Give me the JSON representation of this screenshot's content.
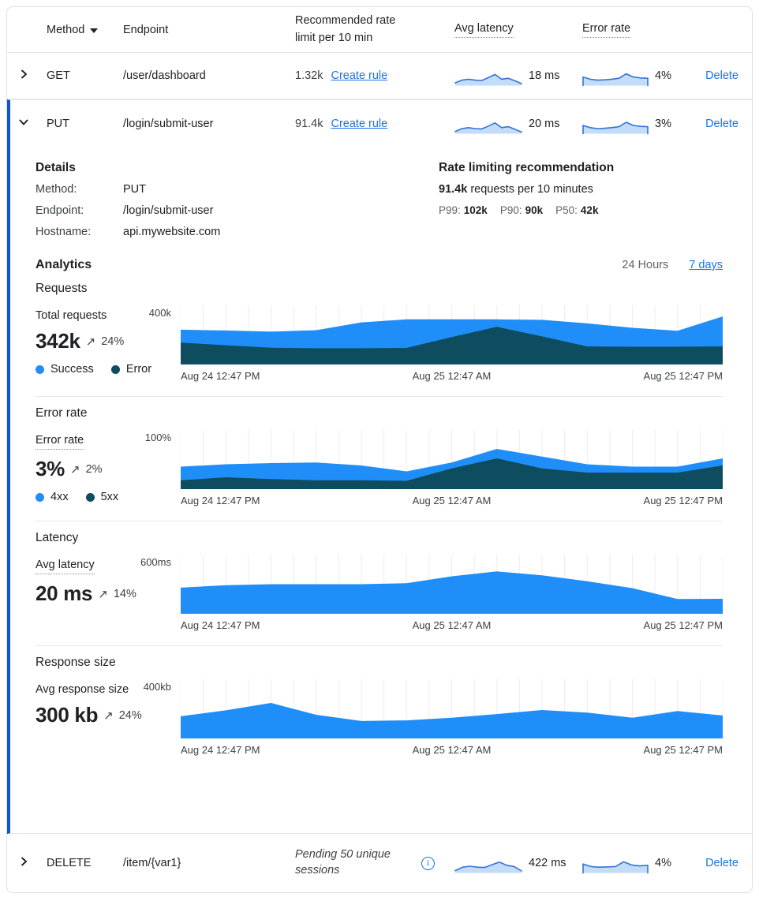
{
  "icons": {
    "trend_up": "↗",
    "info": "i"
  },
  "colors": {
    "success_blue": "#1f8ef9",
    "error_dark": "#0d4d5f",
    "spark_stroke": "#3572d6",
    "spark_fill": "#c3dcf9",
    "link_blue": "#1a73e8",
    "accent_border": "#0b57d0"
  },
  "table": {
    "headers": {
      "method": "Method",
      "endpoint": "Endpoint",
      "rate_limit": "Recommended rate limit per 10 min",
      "avg_latency": "Avg latency",
      "error_rate": "Error rate"
    },
    "rows": [
      {
        "method": "GET",
        "endpoint": "/user/dashboard",
        "rate_limit": "1.32k",
        "rate_action": "Create rule",
        "latency_value": "18 ms",
        "error_value": "4%",
        "action": "Delete"
      },
      {
        "method": "PUT",
        "endpoint": "/login/submit-user",
        "rate_limit": "91.4k",
        "rate_action": "Create rule",
        "latency_value": "20 ms",
        "error_value": "3%",
        "action": "Delete"
      },
      {
        "method": "DELETE",
        "endpoint": "/item/{var1}",
        "rate_note": "Pending 50 unique sessions",
        "latency_value": "422 ms",
        "error_value": "4%",
        "action": "Delete"
      }
    ]
  },
  "details": {
    "title": "Details",
    "fields": [
      {
        "label": "Method:",
        "value": "PUT"
      },
      {
        "label": "Endpoint:",
        "value": "/login/submit-user"
      },
      {
        "label": "Hostname:",
        "value": "api.mywebsite.com"
      }
    ]
  },
  "rate_recommendation": {
    "title": "Rate limiting recommendation",
    "value": "91.4k",
    "value_suffix": "requests per 10 minutes",
    "percentiles": [
      {
        "label": "P99:",
        "value": "102k"
      },
      {
        "label": "P90:",
        "value": "90k"
      },
      {
        "label": "P50:",
        "value": "42k"
      }
    ]
  },
  "analytics": {
    "title": "Analytics",
    "range_current": "24 Hours",
    "range_link": "7 days"
  },
  "chart_data": [
    {
      "id": "requests",
      "type": "area",
      "stacked": true,
      "section_title": "Requests",
      "metric_label": "Total requests",
      "metric_value": "342k",
      "delta": "24%",
      "ymax_label": "400k",
      "ymax": 400,
      "units": "k requests per bucket, axis max 400k",
      "x_labels": [
        "Aug 24 12:47 PM",
        "Aug 25 12:47 AM",
        "Aug 25 12:47 PM"
      ],
      "legend": [
        {
          "label": "Success",
          "color": "#1f8ef9"
        },
        {
          "label": "Error",
          "color": "#0d4d5f"
        }
      ],
      "series": [
        {
          "name": "Error",
          "color": "#0d4d5f",
          "values": [
            148,
            130,
            113,
            110,
            110,
            112,
            185,
            255,
            190,
            122,
            120,
            120,
            122
          ]
        },
        {
          "name": "Success",
          "color": "#1f8ef9",
          "values": [
            87,
            100,
            109,
            122,
            175,
            193,
            120,
            50,
            112,
            156,
            128,
            108,
            203
          ]
        }
      ]
    },
    {
      "id": "error_rate",
      "type": "area",
      "stacked": true,
      "section_title": "Error rate",
      "metric_label": "Error rate",
      "metric_value": "3%",
      "delta": "2%",
      "ymax_label": "100%",
      "ymax": 100,
      "units": "percent, axis max 100%",
      "x_labels": [
        "Aug 24 12:47 PM",
        "Aug 25 12:47 AM",
        "Aug 25 12:47 PM"
      ],
      "legend": [
        {
          "label": "4xx",
          "color": "#1f8ef9"
        },
        {
          "label": "5xx",
          "color": "#0d4d5f"
        }
      ],
      "series": [
        {
          "name": "5xx",
          "color": "#0d4d5f",
          "values": [
            15,
            20,
            17,
            15,
            15,
            14,
            35,
            52,
            35,
            28,
            28,
            28,
            40
          ]
        },
        {
          "name": "4xx",
          "color": "#1f8ef9",
          "values": [
            23,
            22,
            27,
            30,
            25,
            16,
            10,
            16,
            20,
            14,
            10,
            10,
            12
          ]
        }
      ]
    },
    {
      "id": "latency",
      "type": "area",
      "stacked": false,
      "section_title": "Latency",
      "metric_label": "Avg latency",
      "metric_value": "20 ms",
      "delta": "14%",
      "ymax_label": "600ms",
      "ymax": 600,
      "units": "milliseconds, axis max 600ms",
      "x_labels": [
        "Aug 24 12:47 PM",
        "Aug 25 12:47 AM",
        "Aug 25 12:47 PM"
      ],
      "legend": [],
      "series": [
        {
          "name": "Avg latency",
          "color": "#1f8ef9",
          "values": [
            265,
            290,
            300,
            300,
            300,
            310,
            380,
            430,
            390,
            330,
            260,
            150,
            152
          ]
        }
      ]
    },
    {
      "id": "response_size",
      "type": "area",
      "stacked": false,
      "section_title": "Response size",
      "metric_label": "Avg response size",
      "metric_value": "300 kb",
      "delta": "24%",
      "ymax_label": "400kb",
      "ymax": 400,
      "units": "kilobytes, axis max 400kb",
      "x_labels": [
        "Aug 24 12:47 PM",
        "Aug 25 12:47 AM",
        "Aug 25 12:47 PM"
      ],
      "legend": [],
      "series": [
        {
          "name": "Avg response size",
          "color": "#1f8ef9",
          "values": [
            150,
            190,
            240,
            160,
            118,
            122,
            140,
            165,
            192,
            175,
            140,
            185,
            155
          ]
        }
      ]
    }
  ],
  "sparklines": {
    "get_latency": {
      "values": [
        1.5,
        3.2,
        3.8,
        3.2,
        3.0,
        4.8,
        6.8,
        3.8,
        4.4,
        2.8,
        1.0
      ],
      "edges": false
    },
    "get_error": {
      "values": [
        5.2,
        3.8,
        3.2,
        3.4,
        3.8,
        4.4,
        7.2,
        5.2,
        4.6,
        4.4
      ],
      "edges": true
    },
    "put_latency": {
      "values": [
        1.2,
        3.0,
        3.6,
        3.0,
        2.8,
        4.6,
        6.6,
        3.6,
        4.2,
        2.6,
        0.8
      ],
      "edges": false
    },
    "put_error": {
      "values": [
        5.0,
        3.6,
        3.0,
        3.2,
        3.6,
        4.2,
        7.0,
        5.0,
        4.4,
        4.2
      ],
      "edges": true
    },
    "delete_latency": {
      "values": [
        1.2,
        3.4,
        4.0,
        3.4,
        3.2,
        5.0,
        6.6,
        4.6,
        3.8,
        1.0
      ],
      "edges": false
    },
    "delete_error": {
      "values": [
        5.4,
        3.8,
        3.4,
        3.6,
        3.8,
        6.8,
        4.8,
        4.2,
        4.6
      ],
      "edges": true
    }
  }
}
